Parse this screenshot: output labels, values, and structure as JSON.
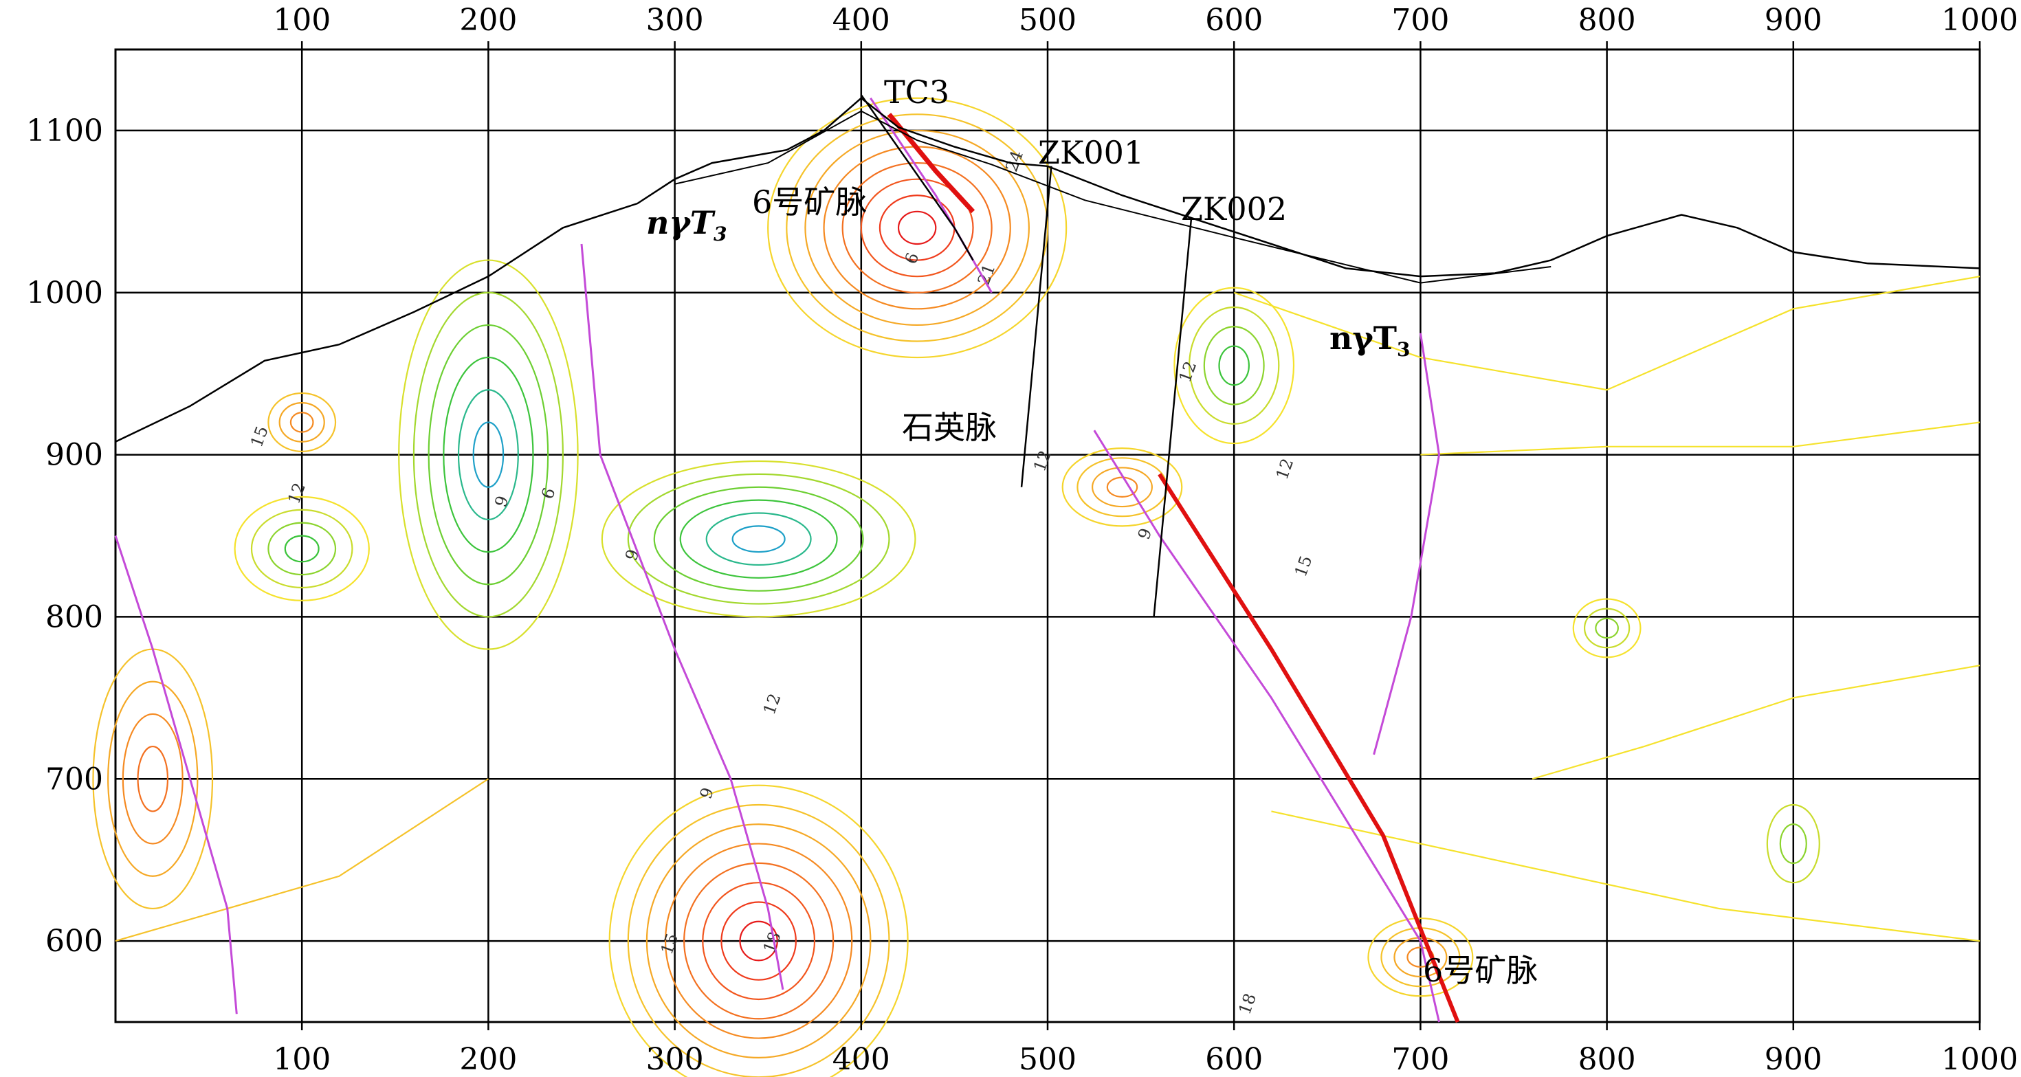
{
  "chart_data": {
    "type": "contour",
    "x_ticks": [
      "100",
      "200",
      "300",
      "400",
      "500",
      "600",
      "700",
      "800",
      "900",
      "1000"
    ],
    "y_ticks": [
      "1100",
      "1000",
      "900",
      "800",
      "700",
      "600"
    ],
    "xlim": [
      0,
      1000
    ],
    "ylim": [
      550,
      1150
    ],
    "grid": true,
    "annotations": {
      "tc3": "TC3",
      "zk001": "ZK001",
      "zk002": "ZK002",
      "vein_top": "6号矿脉",
      "vein_bottom": "6号矿脉",
      "quartz": "石英脉"
    },
    "contour_labels": [
      "15",
      "12",
      "9",
      "6",
      "9",
      "12",
      "15",
      "18",
      "21",
      "24",
      "6",
      "12",
      "12",
      "15",
      "18",
      "9",
      "12",
      "9"
    ],
    "surface_profile": [
      [
        0,
        908
      ],
      [
        40,
        930
      ],
      [
        80,
        958
      ],
      [
        120,
        968
      ],
      [
        160,
        988
      ],
      [
        200,
        1010
      ],
      [
        240,
        1040
      ],
      [
        280,
        1055
      ],
      [
        300,
        1070
      ],
      [
        320,
        1080
      ],
      [
        340,
        1084
      ],
      [
        360,
        1088
      ],
      [
        380,
        1100
      ],
      [
        400,
        1120
      ],
      [
        420,
        1102
      ],
      [
        450,
        1090
      ],
      [
        480,
        1080
      ],
      [
        500,
        1078
      ],
      [
        540,
        1060
      ],
      [
        580,
        1045
      ],
      [
        620,
        1030
      ],
      [
        660,
        1015
      ],
      [
        700,
        1010
      ],
      [
        740,
        1012
      ],
      [
        770,
        1020
      ],
      [
        800,
        1035
      ],
      [
        840,
        1048
      ],
      [
        870,
        1040
      ],
      [
        900,
        1025
      ],
      [
        940,
        1018
      ],
      [
        1000,
        1015
      ]
    ],
    "colors": {
      "high": "#e81818",
      "mid": "#f59a22",
      "low": "#f5e22c",
      "min": "#3cc43c",
      "vein": "#c44ad8",
      "orebody": "#e01010"
    }
  }
}
